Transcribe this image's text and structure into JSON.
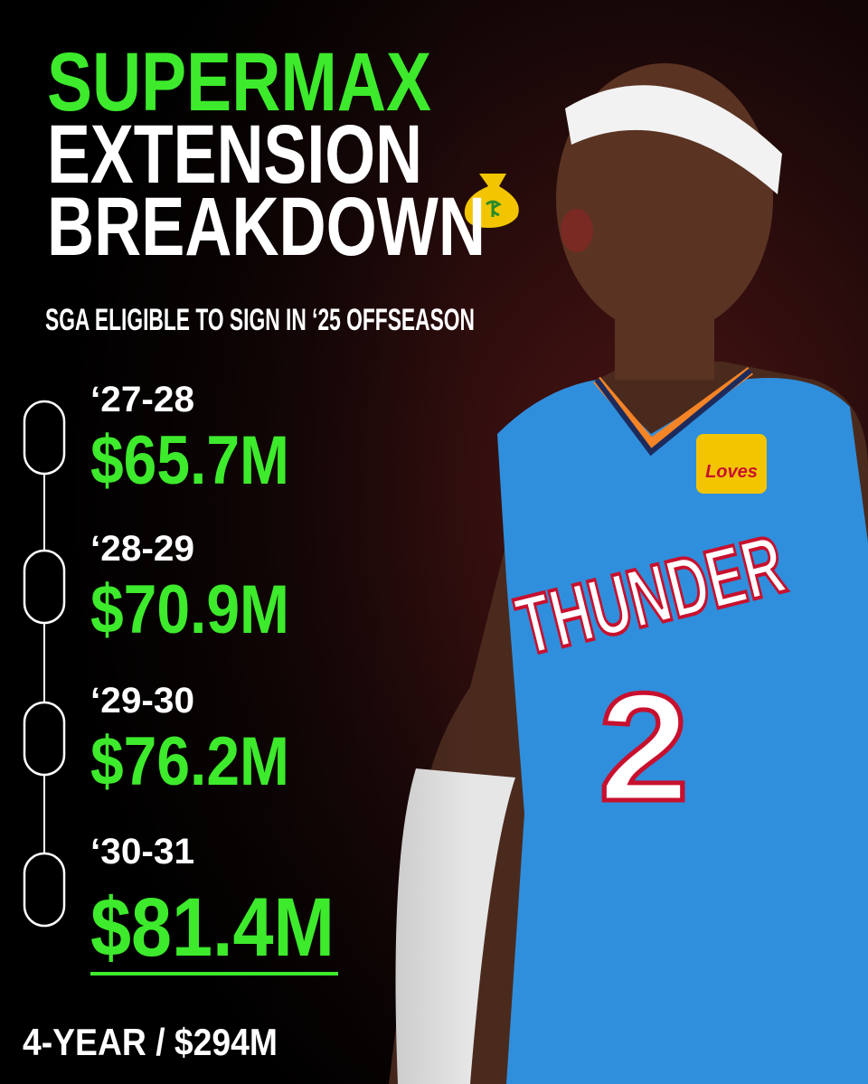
{
  "header": {
    "title_lines": [
      "SUPERMAX",
      "EXTENSION",
      "BREAKDOWN"
    ],
    "subtitle": "SGA ELIGIBLE TO SIGN IN ‘25 OFFSEASON"
  },
  "timeline": [
    {
      "season": "‘27-28",
      "amount": "$65.7M"
    },
    {
      "season": "‘28-29",
      "amount": "$70.9M"
    },
    {
      "season": "‘29-30",
      "amount": "$76.2M"
    },
    {
      "season": "‘30-31",
      "amount": "$81.4M"
    }
  ],
  "total": "4-YEAR / $294M",
  "photo": {
    "jersey_text": "THUNDER",
    "number": "2",
    "sponsor": "Loves"
  }
}
